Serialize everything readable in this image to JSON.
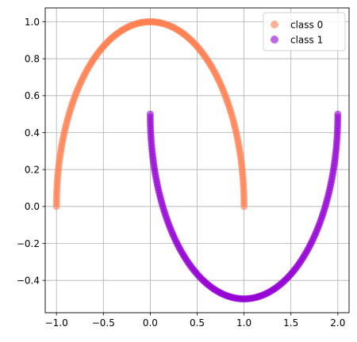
{
  "chart_data": {
    "type": "scatter",
    "title": "",
    "xlabel": "",
    "ylabel": "",
    "xlim": [
      -1.12,
      2.12
    ],
    "ylim": [
      -0.575,
      1.075
    ],
    "grid": true,
    "legend_position": "top-right",
    "x_ticks": [
      -1.0,
      -0.5,
      0.0,
      0.5,
      1.0,
      1.5,
      2.0
    ],
    "x_tick_labels": [
      "−1.0",
      "−0.5",
      "0.0",
      "0.5",
      "1.0",
      "1.5",
      "2.0"
    ],
    "y_ticks": [
      -0.4,
      -0.2,
      0.0,
      0.2,
      0.4,
      0.6,
      0.8,
      1.0
    ],
    "y_tick_labels": [
      "−0.4",
      "−0.2",
      "0.0",
      "0.2",
      "0.4",
      "0.6",
      "0.8",
      "1.0"
    ],
    "series": [
      {
        "name": "class 0",
        "color": "#ff7f50",
        "x": [
          1.0,
          0.9848,
          0.9397,
          0.866,
          0.766,
          0.6428,
          0.5,
          0.342,
          0.1736,
          0.0,
          -0.1736,
          -0.342,
          -0.5,
          -0.6428,
          -0.766,
          -0.866,
          -0.9397,
          -0.9848,
          -1.0
        ],
        "y": [
          0.0,
          0.1736,
          0.342,
          0.5,
          0.6428,
          0.766,
          0.866,
          0.9397,
          0.9848,
          1.0,
          0.9848,
          0.9397,
          0.866,
          0.766,
          0.6428,
          0.5,
          0.342,
          0.1736,
          0.0
        ]
      },
      {
        "name": "class 1",
        "color": "#9400d3",
        "x": [
          0.0,
          0.0152,
          0.0603,
          0.134,
          0.234,
          0.3572,
          0.5,
          0.658,
          0.8264,
          1.0,
          1.1736,
          1.342,
          1.5,
          1.6428,
          1.766,
          1.866,
          1.9397,
          1.9848,
          2.0
        ],
        "y": [
          0.5,
          0.3264,
          0.158,
          0.0,
          -0.1428,
          -0.266,
          -0.366,
          -0.4397,
          -0.4848,
          -0.5,
          -0.4848,
          -0.4397,
          -0.366,
          -0.266,
          -0.1428,
          0.0,
          0.158,
          0.3264,
          0.5
        ]
      }
    ]
  }
}
